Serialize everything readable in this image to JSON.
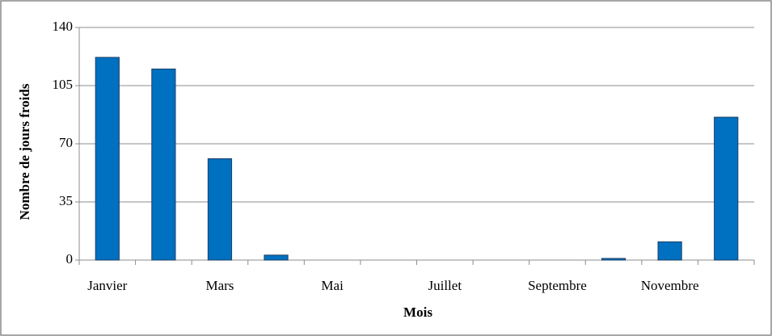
{
  "chart_data": {
    "type": "bar",
    "categories": [
      "Janvier",
      null,
      "Mars",
      null,
      "Mai",
      null,
      "Juillet",
      null,
      "Septembre",
      null,
      "Novembre",
      null
    ],
    "values": [
      122,
      115,
      61,
      3,
      0,
      0,
      0,
      0,
      0,
      1,
      11,
      86
    ],
    "color": "#0070c0",
    "xlabel": "Mois",
    "ylabel": "Nombre de jours froids",
    "ylim": [
      0,
      140
    ],
    "yticks": [
      0,
      35,
      70,
      105,
      140
    ],
    "grid": true
  }
}
